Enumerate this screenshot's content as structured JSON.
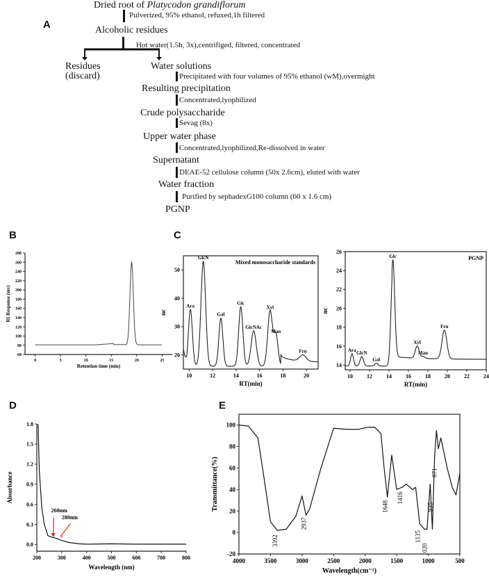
{
  "panels": {
    "A": {
      "letter": "A",
      "nodes": [
        {
          "text_plain": "Dried root of ",
          "text_italic": "Platycodon grandiflorum"
        },
        {
          "text": "Alcoholic residues"
        },
        {
          "text": "Residues"
        },
        {
          "text": "(discard)"
        },
        {
          "text": "Water solutions"
        },
        {
          "text": "Resulting precipitation"
        },
        {
          "text": "Crude polysaccharide"
        },
        {
          "text": "Upper water phase"
        },
        {
          "text": "Supernatant"
        },
        {
          "text": "Water fraction"
        },
        {
          "text": "PGNP"
        }
      ],
      "steps": [
        "Pulverized, 95% ethanol, refuxed,1h filtered",
        "Hot water(1.5h, 3x),centrifiged, filtered, concentrated",
        "Precipitated with four volumes of 95% ethanol (wM),overmight",
        "Concentrated,lyophilized",
        "Sevag (8x)",
        "Concentrated,lyophilized,Re-dissolved in water",
        "DEAE-52 cellulose column (50x 2.6cm), eluted with water",
        "Purified by sephadexG100 column (60 x 1.6 cm)"
      ]
    },
    "B": {
      "letter": "B"
    },
    "C": {
      "letter": "C"
    },
    "D": {
      "letter": "D"
    },
    "E": {
      "letter": "E"
    }
  },
  "chart_data": [
    {
      "id": "B",
      "type": "line",
      "title": "",
      "xlabel": "Retention time (min)",
      "ylabel": "RI Response (mv)",
      "xlim": [
        -2,
        27
      ],
      "ylim": [
        60,
        280
      ],
      "xticks": [
        "0",
        "5",
        "10",
        "15",
        "20",
        "25"
      ],
      "yticks": [
        "60",
        "80",
        "100",
        "120",
        "140",
        "160",
        "180",
        "200",
        "220",
        "240",
        "260",
        "280"
      ],
      "x": [
        0,
        5,
        10,
        12,
        14,
        15.2,
        15.6,
        17.5,
        18.3,
        18.7,
        19.0,
        19.3,
        19.7,
        20.2,
        25
      ],
      "values": [
        81,
        81,
        81,
        82,
        83,
        84,
        81,
        82,
        90,
        200,
        260,
        200,
        90,
        81,
        81
      ],
      "grid": false
    },
    {
      "id": "C-standards",
      "type": "line",
      "title": "Mixed monosaccharide standards",
      "xlabel": "RT(min)",
      "ylabel": "nc",
      "xlim": [
        9.5,
        21
      ],
      "ylim": [
        15,
        55
      ],
      "xticks": [
        "10",
        "12",
        "14",
        "16",
        "18",
        "20"
      ],
      "yticks": [
        "20",
        "30",
        "40",
        "50"
      ],
      "peaks": [
        {
          "label": "Ara",
          "x": 10.1,
          "y": 36
        },
        {
          "label": "GlcN",
          "x": 11.2,
          "y": 53
        },
        {
          "label": "Gal",
          "x": 12.7,
          "y": 33
        },
        {
          "label": "Glc",
          "x": 14.4,
          "y": 37
        },
        {
          "label": "GlcNAc",
          "x": 15.5,
          "y": 28.5
        },
        {
          "label": "Xyl",
          "x": 16.9,
          "y": 35.5
        },
        {
          "label": "Man",
          "x": 17.4,
          "y": 27
        },
        {
          "label": "Fru",
          "x": 19.7,
          "y": 20
        }
      ],
      "grid": false
    },
    {
      "id": "C-PGNP",
      "type": "line",
      "title": "PGNP",
      "xlabel": "RT(min)",
      "ylabel": "nc",
      "xlim": [
        9.5,
        24
      ],
      "ylim": [
        13.5,
        26
      ],
      "xticks": [
        "10",
        "12",
        "14",
        "16",
        "18",
        "20",
        "22",
        "24"
      ],
      "yticks": [
        "14",
        "16",
        "18",
        "20",
        "22",
        "24",
        "26"
      ],
      "peaks": [
        {
          "label": "Ara",
          "x": 10.2,
          "y": 15.2
        },
        {
          "label": "GlcN",
          "x": 11.2,
          "y": 14.9
        },
        {
          "label": "Gal",
          "x": 12.7,
          "y": 14.2
        },
        {
          "label": "Glc",
          "x": 14.4,
          "y": 25.1
        },
        {
          "label": "Xyl",
          "x": 16.9,
          "y": 16.0
        },
        {
          "label": "Man",
          "x": 17.5,
          "y": 14.9
        },
        {
          "label": "Fru",
          "x": 19.7,
          "y": 17.7
        }
      ],
      "grid": false
    },
    {
      "id": "D",
      "type": "line",
      "title": "",
      "xlabel": "Wavelength (nm)",
      "ylabel": "Absorbance",
      "xlim": [
        200,
        800
      ],
      "ylim": [
        -0.1,
        1.8
      ],
      "xticks": [
        "200",
        "300",
        "400",
        "500",
        "600",
        "700",
        "800"
      ],
      "yticks": [
        "0.0",
        "0.3",
        "0.6",
        "0.9",
        "1.2",
        "1.5",
        "1.8"
      ],
      "x": [
        205,
        210,
        220,
        230,
        245,
        260,
        280,
        300,
        330,
        370,
        400,
        500,
        600,
        700,
        800
      ],
      "values": [
        1.8,
        1.1,
        0.55,
        0.3,
        0.13,
        0.11,
        0.09,
        0.06,
        0.03,
        0.01,
        0.005,
        0.01,
        0.005,
        0.005,
        0.005
      ],
      "annotations": [
        {
          "text": "260nm",
          "x": 260,
          "y": 0.11,
          "arrow_color": "#d62728"
        },
        {
          "text": "280nm",
          "x": 280,
          "y": 0.09,
          "arrow_color": "#d62728"
        }
      ],
      "grid": false
    },
    {
      "id": "E",
      "type": "line",
      "title": "",
      "xlabel": "Wavelength(cm⁻¹)",
      "ylabel": "Transmittance(%)",
      "xlim": [
        4000,
        500
      ],
      "ylim": [
        -20,
        110
      ],
      "xticks": [
        "4000",
        "3500",
        "3000",
        "2500",
        "2000",
        "1500",
        "1000",
        "500"
      ],
      "yticks": [
        "-20",
        "0",
        "20",
        "40",
        "60",
        "80",
        "100"
      ],
      "x": [
        4000,
        3850,
        3700,
        3600,
        3500,
        3392,
        3250,
        3100,
        3000,
        2937,
        2880,
        2700,
        2500,
        2300,
        2100,
        1950,
        1850,
        1750,
        1700,
        1648,
        1580,
        1500,
        1416,
        1350,
        1250,
        1200,
        1135,
        1060,
        1020,
        970,
        935,
        900,
        871,
        840,
        800,
        700,
        620,
        560,
        500
      ],
      "values": [
        100,
        99,
        88,
        50,
        10,
        2,
        3,
        15,
        34,
        16,
        22,
        60,
        97,
        96,
        96,
        98,
        98,
        92,
        60,
        33,
        72,
        40,
        42,
        45,
        40,
        42,
        8,
        3,
        3,
        45,
        3,
        70,
        95,
        78,
        88,
        60,
        42,
        35,
        55
      ],
      "peak_labels": [
        "3392",
        "2937",
        "1648",
        "1416",
        "1135",
        "1020",
        "935",
        "871"
      ],
      "grid": false
    }
  ]
}
